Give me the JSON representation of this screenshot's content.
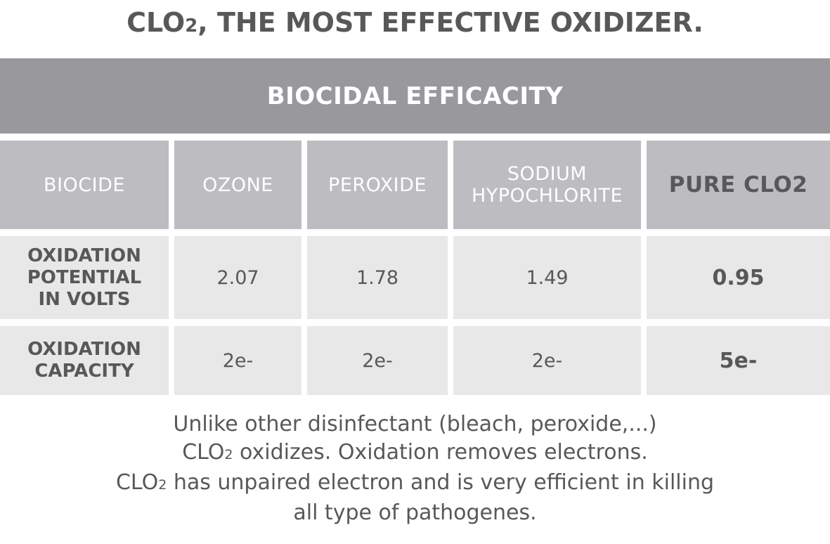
{
  "title": {
    "prefix": "CLO",
    "subscript": "2",
    "suffix": ", THE MOST EFFECTIVE OXIDIZER."
  },
  "banner": "BIOCIDAL EFFICACITY",
  "table": {
    "headers": {
      "biocide": "BIOCIDE",
      "ozone": "OZONE",
      "peroxide": "PEROXIDE",
      "sodium_line1": "SODIUM",
      "sodium_line2": "HYPOCHLORITE",
      "clo2": "PURE CLO2"
    },
    "rows": {
      "potential": {
        "label_line1": "OXIDATION",
        "label_line2": "POTENTIAL",
        "label_line3": "IN VOLTS",
        "ozone": "2.07",
        "peroxide": "1.78",
        "sodium": "1.49",
        "clo2": "0.95"
      },
      "capacity": {
        "label_line1": "OXIDATION",
        "label_line2": "CAPACITY",
        "ozone": "2e-",
        "peroxide": "2e-",
        "sodium": "2e-",
        "clo2": "5e-"
      }
    }
  },
  "footer": {
    "line1": "Unlike other disinfectant (bleach, peroxide,...)",
    "line2_prefix": "CLO",
    "line2_sub": "2",
    "line2_suffix": " oxidizes. Oxidation removes electrons.",
    "line3_prefix": "CLO",
    "line3_sub": "2",
    "line3_suffix": " has unpaired electron and is very efficient in killing",
    "line4": "all type of pathogenes."
  },
  "colors": {
    "banner_bg": "#99989d",
    "header_bg": "#bdbdc1",
    "row_bg": "#e8e8e9",
    "text": "#58585a"
  }
}
